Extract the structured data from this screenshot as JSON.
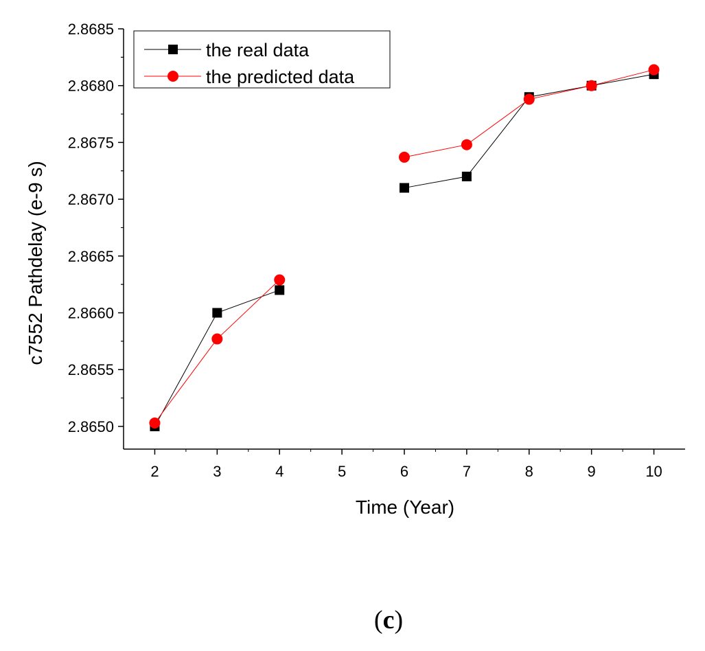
{
  "chart_data": {
    "type": "line",
    "title": "",
    "xlabel": "Time (Year)",
    "ylabel": "c7552 Pathdelay (e-9 s)",
    "xlim": [
      1.5,
      10.5
    ],
    "ylim": [
      2.8648,
      2.8685
    ],
    "x_ticks": [
      2,
      3,
      4,
      5,
      6,
      7,
      8,
      9,
      10
    ],
    "y_ticks": [
      "2.8650",
      "2.8655",
      "2.8660",
      "2.8665",
      "2.8670",
      "2.8675",
      "2.8680",
      "2.8685"
    ],
    "legend_position": "top-left",
    "grid": false,
    "series": [
      {
        "name": "the real data",
        "color": "#000000",
        "marker": "square",
        "segments": [
          [
            [
              2,
              2.865
            ],
            [
              3,
              2.866
            ],
            [
              4,
              2.8662
            ]
          ],
          [
            [
              6,
              2.8671
            ],
            [
              7,
              2.8672
            ],
            [
              8,
              2.8679
            ],
            [
              9,
              2.868
            ],
            [
              10,
              2.8681
            ]
          ]
        ]
      },
      {
        "name": "the predicted data",
        "color": "#ff0000",
        "marker": "circle",
        "segments": [
          [
            [
              2,
              2.86503
            ],
            [
              3,
              2.86577
            ],
            [
              4,
              2.86629
            ]
          ],
          [
            [
              6,
              2.86737
            ],
            [
              7,
              2.86748
            ],
            [
              8,
              2.86788
            ],
            [
              9,
              2.868
            ],
            [
              10,
              2.86814
            ]
          ]
        ]
      }
    ]
  },
  "caption": {
    "open": "(",
    "letter": "c",
    "close": ")"
  }
}
